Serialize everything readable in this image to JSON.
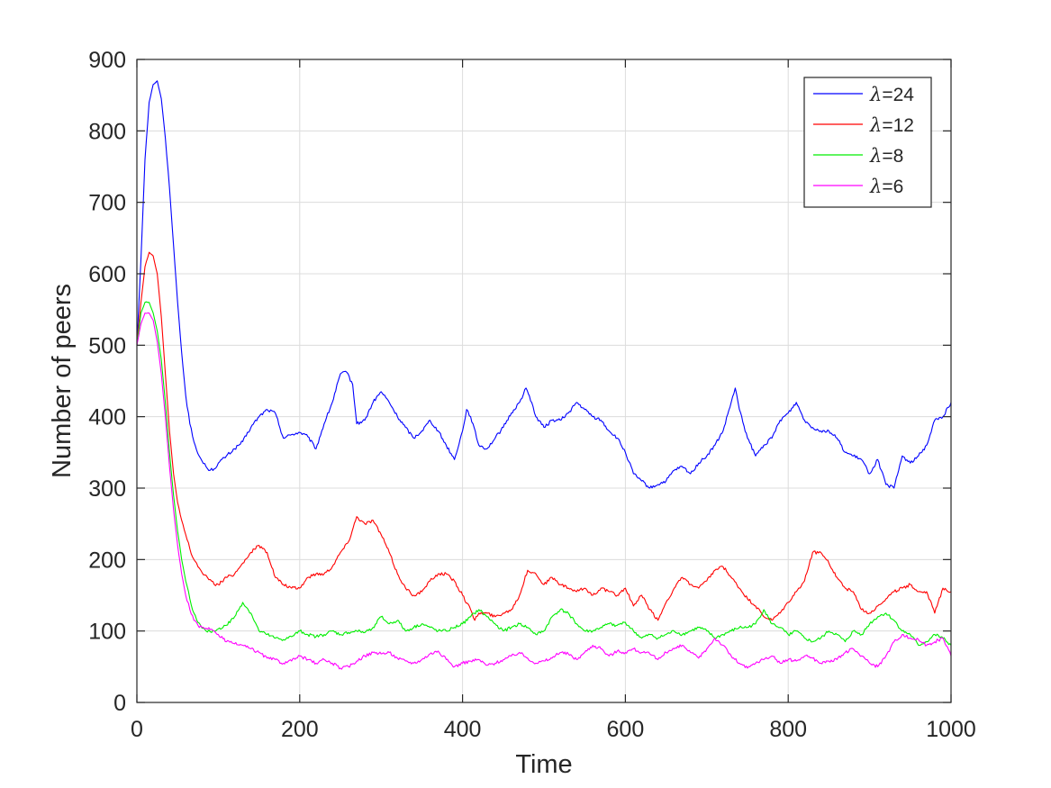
{
  "chart_data": {
    "type": "line",
    "title": "",
    "xlabel": "Time",
    "ylabel": "Number of peers",
    "xlim": [
      0,
      1000
    ],
    "ylim": [
      0,
      900
    ],
    "xticks": [
      0,
      200,
      400,
      600,
      800,
      1000
    ],
    "yticks": [
      0,
      100,
      200,
      300,
      400,
      500,
      600,
      700,
      800,
      900
    ],
    "xtick_labels": [
      "0",
      "200",
      "400",
      "600",
      "800",
      "1000"
    ],
    "ytick_labels": [
      "0",
      "100",
      "200",
      "300",
      "400",
      "500",
      "600",
      "700",
      "800",
      "900"
    ],
    "grid": true,
    "legend_position": "top-right",
    "series": [
      {
        "name": "λ=24",
        "legend_symbol": "λ",
        "legend_value": "=24",
        "color": "#0000ff",
        "x": [
          0,
          5,
          10,
          15,
          20,
          25,
          30,
          35,
          40,
          45,
          50,
          55,
          60,
          65,
          70,
          75,
          80,
          85,
          90,
          95,
          100,
          110,
          120,
          130,
          140,
          150,
          160,
          170,
          180,
          190,
          200,
          210,
          220,
          230,
          240,
          250,
          258,
          265,
          270,
          280,
          290,
          300,
          310,
          320,
          330,
          340,
          350,
          360,
          370,
          380,
          390,
          400,
          405,
          410,
          420,
          430,
          440,
          450,
          460,
          470,
          478,
          485,
          490,
          500,
          510,
          520,
          530,
          540,
          550,
          560,
          570,
          580,
          590,
          600,
          610,
          620,
          630,
          640,
          650,
          660,
          670,
          680,
          690,
          700,
          710,
          720,
          730,
          735,
          740,
          750,
          760,
          770,
          780,
          790,
          800,
          810,
          820,
          830,
          840,
          850,
          860,
          870,
          880,
          890,
          900,
          910,
          920,
          930,
          940,
          950,
          960,
          970,
          980,
          990,
          1000
        ],
        "y": [
          500,
          620,
          760,
          840,
          865,
          870,
          845,
          790,
          720,
          640,
          560,
          490,
          430,
          390,
          365,
          348,
          338,
          330,
          325,
          327,
          335,
          345,
          355,
          365,
          385,
          400,
          410,
          405,
          370,
          375,
          378,
          372,
          355,
          390,
          420,
          460,
          462,
          445,
          390,
          395,
          420,
          435,
          420,
          400,
          385,
          370,
          380,
          395,
          380,
          360,
          340,
          380,
          410,
          400,
          360,
          355,
          370,
          385,
          405,
          420,
          440,
          420,
          400,
          385,
          395,
          395,
          405,
          420,
          410,
          400,
          395,
          380,
          370,
          350,
          320,
          310,
          300,
          305,
          310,
          325,
          330,
          320,
          335,
          345,
          360,
          380,
          420,
          440,
          410,
          370,
          345,
          360,
          370,
          395,
          405,
          420,
          395,
          385,
          380,
          380,
          370,
          350,
          345,
          340,
          320,
          340,
          305,
          300,
          345,
          335,
          345,
          360,
          395,
          400,
          420
        ]
      },
      {
        "name": "λ=12",
        "legend_symbol": "λ",
        "legend_value": "=12",
        "color": "#ff0000",
        "x": [
          0,
          5,
          10,
          15,
          20,
          25,
          30,
          35,
          40,
          45,
          50,
          55,
          60,
          65,
          70,
          75,
          80,
          85,
          90,
          95,
          100,
          110,
          120,
          130,
          140,
          150,
          160,
          170,
          180,
          190,
          200,
          210,
          220,
          230,
          240,
          250,
          260,
          270,
          280,
          290,
          300,
          310,
          320,
          330,
          340,
          350,
          360,
          370,
          380,
          390,
          400,
          410,
          415,
          420,
          430,
          440,
          450,
          460,
          470,
          480,
          490,
          500,
          510,
          520,
          530,
          540,
          550,
          560,
          570,
          580,
          590,
          600,
          610,
          620,
          630,
          640,
          650,
          660,
          670,
          680,
          690,
          700,
          710,
          720,
          730,
          740,
          750,
          760,
          770,
          780,
          790,
          800,
          810,
          820,
          830,
          840,
          850,
          860,
          870,
          880,
          890,
          900,
          910,
          920,
          930,
          940,
          950,
          960,
          970,
          980,
          990,
          1000
        ],
        "y": [
          500,
          560,
          610,
          630,
          625,
          600,
          540,
          460,
          380,
          320,
          280,
          255,
          235,
          215,
          200,
          190,
          182,
          178,
          172,
          165,
          165,
          175,
          180,
          195,
          210,
          220,
          210,
          175,
          165,
          160,
          160,
          175,
          180,
          180,
          190,
          210,
          225,
          260,
          250,
          255,
          235,
          210,
          180,
          160,
          150,
          155,
          170,
          180,
          180,
          170,
          150,
          130,
          115,
          125,
          125,
          120,
          125,
          130,
          150,
          185,
          180,
          165,
          175,
          165,
          160,
          155,
          160,
          150,
          160,
          155,
          150,
          160,
          135,
          150,
          130,
          115,
          140,
          160,
          175,
          165,
          160,
          170,
          185,
          190,
          175,
          160,
          145,
          135,
          120,
          115,
          125,
          140,
          155,
          170,
          210,
          210,
          195,
          175,
          160,
          155,
          130,
          125,
          135,
          145,
          155,
          160,
          165,
          155,
          155,
          125,
          160,
          155
        ]
      },
      {
        "name": "λ=8",
        "legend_symbol": "λ",
        "legend_value": "=8",
        "color": "#00ee00",
        "x": [
          0,
          5,
          10,
          15,
          20,
          25,
          30,
          35,
          40,
          45,
          50,
          55,
          60,
          65,
          70,
          75,
          80,
          85,
          90,
          95,
          100,
          110,
          120,
          130,
          140,
          150,
          160,
          170,
          180,
          190,
          200,
          210,
          220,
          230,
          240,
          250,
          260,
          270,
          280,
          290,
          300,
          310,
          320,
          330,
          340,
          350,
          360,
          370,
          380,
          390,
          400,
          410,
          420,
          430,
          440,
          450,
          460,
          470,
          480,
          490,
          500,
          510,
          520,
          530,
          540,
          550,
          560,
          570,
          580,
          590,
          600,
          610,
          620,
          630,
          640,
          650,
          660,
          670,
          680,
          690,
          700,
          710,
          720,
          730,
          740,
          750,
          760,
          770,
          780,
          790,
          800,
          810,
          820,
          830,
          840,
          850,
          860,
          870,
          880,
          890,
          900,
          910,
          920,
          930,
          940,
          950,
          960,
          970,
          980,
          990,
          1000
        ],
        "y": [
          500,
          545,
          560,
          560,
          545,
          520,
          480,
          420,
          350,
          290,
          240,
          200,
          170,
          145,
          125,
          112,
          104,
          100,
          99,
          100,
          103,
          108,
          120,
          140,
          125,
          100,
          95,
          90,
          88,
          92,
          100,
          95,
          92,
          95,
          100,
          95,
          98,
          100,
          98,
          105,
          120,
          110,
          115,
          100,
          105,
          110,
          105,
          100,
          100,
          105,
          110,
          120,
          130,
          120,
          110,
          100,
          105,
          110,
          105,
          95,
          100,
          120,
          130,
          125,
          110,
          100,
          100,
          105,
          110,
          108,
          112,
          100,
          90,
          95,
          90,
          95,
          100,
          95,
          100,
          105,
          100,
          90,
          95,
          100,
          105,
          105,
          110,
          130,
          110,
          105,
          95,
          100,
          90,
          85,
          90,
          100,
          95,
          85,
          100,
          95,
          110,
          120,
          125,
          115,
          100,
          95,
          80,
          85,
          95,
          90,
          80
        ]
      },
      {
        "name": "λ=6",
        "legend_symbol": "λ",
        "legend_value": "=6",
        "color": "#ff00ff",
        "x": [
          0,
          5,
          10,
          15,
          20,
          25,
          30,
          35,
          40,
          45,
          50,
          55,
          60,
          65,
          70,
          75,
          80,
          85,
          90,
          95,
          100,
          110,
          120,
          130,
          140,
          150,
          160,
          170,
          180,
          190,
          200,
          210,
          220,
          230,
          240,
          250,
          260,
          270,
          280,
          290,
          300,
          310,
          320,
          330,
          340,
          350,
          360,
          370,
          380,
          390,
          400,
          410,
          420,
          430,
          440,
          450,
          460,
          470,
          480,
          490,
          500,
          510,
          520,
          530,
          540,
          550,
          560,
          570,
          580,
          590,
          600,
          610,
          620,
          630,
          640,
          650,
          660,
          670,
          680,
          690,
          700,
          710,
          720,
          730,
          740,
          750,
          760,
          770,
          780,
          790,
          800,
          810,
          820,
          830,
          840,
          850,
          860,
          870,
          880,
          890,
          900,
          910,
          920,
          930,
          940,
          950,
          960,
          970,
          980,
          990,
          1000
        ],
        "y": [
          500,
          530,
          545,
          545,
          535,
          505,
          460,
          400,
          330,
          270,
          220,
          180,
          150,
          130,
          115,
          108,
          105,
          104,
          102,
          100,
          95,
          85,
          82,
          80,
          75,
          70,
          62,
          60,
          55,
          58,
          65,
          60,
          55,
          60,
          55,
          48,
          50,
          58,
          65,
          70,
          68,
          70,
          62,
          58,
          55,
          60,
          68,
          72,
          60,
          50,
          55,
          58,
          60,
          52,
          55,
          60,
          65,
          70,
          62,
          55,
          58,
          62,
          70,
          68,
          60,
          70,
          80,
          75,
          65,
          72,
          70,
          75,
          70,
          68,
          60,
          70,
          75,
          80,
          70,
          62,
          75,
          90,
          80,
          65,
          55,
          48,
          55,
          60,
          65,
          55,
          60,
          58,
          65,
          62,
          55,
          58,
          60,
          70,
          75,
          65,
          55,
          50,
          65,
          85,
          95,
          90,
          88,
          80,
          85,
          90,
          65
        ]
      }
    ]
  }
}
